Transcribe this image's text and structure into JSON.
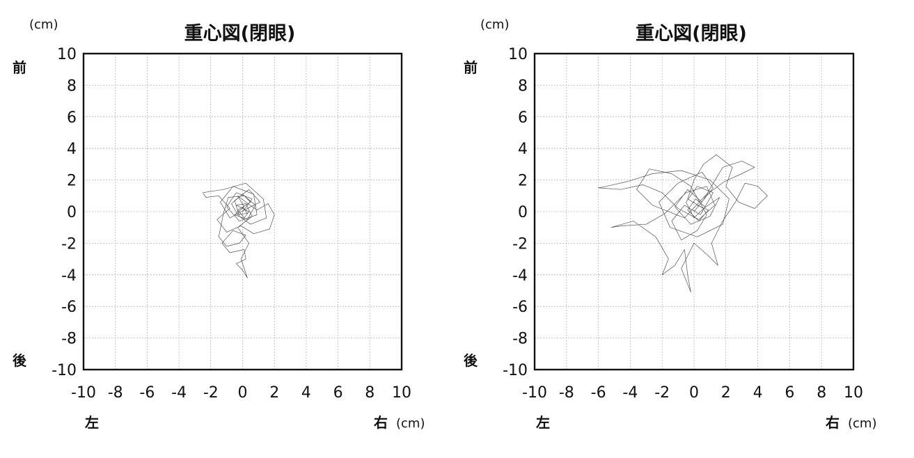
{
  "chart_data": [
    {
      "type": "line",
      "title": "重心図(閉眼)",
      "x_unit": "(cm)",
      "y_unit": "(cm)",
      "y_top_label": "前",
      "y_bottom_label": "後",
      "x_left_label": "左",
      "x_right_label": "右",
      "xlim": [
        -10,
        10
      ],
      "ylim": [
        -10,
        10
      ],
      "x_ticks": [
        "-10",
        "-8",
        "-6",
        "-4",
        "-2",
        "0",
        "2",
        "4",
        "6",
        "8",
        "10"
      ],
      "y_ticks": [
        "10",
        "8",
        "6",
        "4",
        "2",
        "0",
        "-2",
        "-4",
        "-6",
        "-8",
        "-10"
      ],
      "grid": true,
      "series": [
        {
          "stroke": "#333333",
          "points": [
            [
              0,
              0
            ],
            [
              0.6,
              0.8
            ],
            [
              -0.4,
              1.2
            ],
            [
              -1,
              0.3
            ],
            [
              -0.2,
              -0.6
            ],
            [
              0.9,
              -0.2
            ],
            [
              0.7,
              1.1
            ],
            [
              -0.6,
              1.6
            ],
            [
              -1.4,
              0.6
            ],
            [
              -0.8,
              -0.4
            ],
            [
              0.3,
              0.2
            ],
            [
              1.1,
              0.6
            ],
            [
              0.4,
              1.4
            ],
            [
              -0.5,
              0.7
            ],
            [
              -0.2,
              -0.3
            ],
            [
              0.5,
              -0.8
            ],
            [
              1.5,
              -0.4
            ],
            [
              1.3,
              0.8
            ],
            [
              0.2,
              1.8
            ],
            [
              -1.2,
              1.4
            ],
            [
              -2.5,
              1.2
            ],
            [
              -2.3,
              0.9
            ],
            [
              -1.5,
              1.0
            ],
            [
              -0.8,
              0.2
            ],
            [
              -1.6,
              -0.5
            ],
            [
              -1.0,
              -1.3
            ],
            [
              -0.1,
              -0.9
            ],
            [
              0.7,
              -1.4
            ],
            [
              1.7,
              -1.1
            ],
            [
              2.0,
              -0.2
            ],
            [
              1.6,
              0.5
            ],
            [
              0.9,
              0.1
            ],
            [
              0.2,
              0.6
            ],
            [
              -0.3,
              1.0
            ],
            [
              0.1,
              0.3
            ],
            [
              -0.5,
              -0.2
            ],
            [
              0.3,
              -0.5
            ],
            [
              0.8,
              0.4
            ],
            [
              0.1,
              1.0
            ],
            [
              -0.9,
              0.9
            ],
            [
              -1.2,
              -0.1
            ],
            [
              -1.5,
              -1.6
            ],
            [
              -1.0,
              -2.2
            ],
            [
              -0.2,
              -2.0
            ],
            [
              0.2,
              -1.5
            ],
            [
              -0.6,
              -1.2
            ],
            [
              -1.3,
              -2.0
            ],
            [
              -0.8,
              -2.6
            ],
            [
              0.1,
              -2.4
            ],
            [
              0.2,
              -3.0
            ],
            [
              -0.4,
              -3.3
            ],
            [
              0.0,
              -3.7
            ],
            [
              0.3,
              -4.2
            ],
            [
              -0.1,
              -3.0
            ],
            [
              0.4,
              -2.0
            ],
            [
              -0.3,
              -1.0
            ],
            [
              0.6,
              -0.3
            ],
            [
              0.2,
              0.5
            ],
            [
              -0.4,
              0.4
            ],
            [
              0.4,
              0.0
            ],
            [
              0.1,
              -0.4
            ],
            [
              -0.3,
              0.1
            ],
            [
              0.5,
              0.6
            ],
            [
              0.0,
              1.1
            ],
            [
              -0.7,
              0.5
            ],
            [
              -0.3,
              -0.2
            ],
            [
              0.3,
              -0.1
            ],
            [
              0.0,
              0.3
            ]
          ]
        }
      ]
    },
    {
      "type": "line",
      "title": "重心図(閉眼)",
      "x_unit": "(cm)",
      "y_unit": "(cm)",
      "y_top_label": "前",
      "y_bottom_label": "後",
      "x_left_label": "左",
      "x_right_label": "右",
      "xlim": [
        -10,
        10
      ],
      "ylim": [
        -10,
        10
      ],
      "x_ticks": [
        "-10",
        "-8",
        "-6",
        "-4",
        "-2",
        "0",
        "2",
        "4",
        "6",
        "8",
        "10"
      ],
      "y_ticks": [
        "10",
        "8",
        "6",
        "4",
        "2",
        "0",
        "-2",
        "-4",
        "-6",
        "-8",
        "-10"
      ],
      "grid": true,
      "series": [
        {
          "stroke": "#333333",
          "points": [
            [
              0,
              0
            ],
            [
              1.2,
              1.5
            ],
            [
              0.5,
              2.5
            ],
            [
              -1.0,
              1.8
            ],
            [
              -2.2,
              0.6
            ],
            [
              -1.5,
              -1.0
            ],
            [
              0.2,
              -1.6
            ],
            [
              1.8,
              -0.8
            ],
            [
              2.2,
              0.8
            ],
            [
              1.0,
              2.0
            ],
            [
              -0.8,
              2.6
            ],
            [
              -2.6,
              2.4
            ],
            [
              -4.2,
              1.9
            ],
            [
              -5.5,
              1.6
            ],
            [
              -6.0,
              1.5
            ],
            [
              -4.6,
              1.4
            ],
            [
              -3.2,
              1.7
            ],
            [
              -2.0,
              1.2
            ],
            [
              -1.0,
              0.2
            ],
            [
              0.3,
              -0.5
            ],
            [
              1.3,
              0.4
            ],
            [
              0.8,
              1.6
            ],
            [
              -0.5,
              1.2
            ],
            [
              -1.8,
              -0.1
            ],
            [
              -3.0,
              -0.8
            ],
            [
              -4.5,
              -0.9
            ],
            [
              -5.2,
              -1.0
            ],
            [
              -3.8,
              -0.6
            ],
            [
              -2.4,
              -1.6
            ],
            [
              -1.6,
              -3.0
            ],
            [
              -2.0,
              -4.0
            ],
            [
              -1.2,
              -3.4
            ],
            [
              -0.6,
              -2.4
            ],
            [
              -0.4,
              -4.0
            ],
            [
              -0.2,
              -5.1
            ],
            [
              -0.8,
              -3.6
            ],
            [
              0.0,
              -2.0
            ],
            [
              0.9,
              -2.8
            ],
            [
              1.5,
              -3.4
            ],
            [
              1.1,
              -2.0
            ],
            [
              1.8,
              -0.6
            ],
            [
              2.6,
              0.6
            ],
            [
              3.2,
              1.8
            ],
            [
              4.0,
              1.6
            ],
            [
              4.6,
              1.0
            ],
            [
              3.8,
              0.2
            ],
            [
              2.8,
              0.6
            ],
            [
              2.0,
              1.6
            ],
            [
              2.4,
              2.8
            ],
            [
              1.4,
              3.6
            ],
            [
              0.6,
              3.0
            ],
            [
              0.0,
              2.0
            ],
            [
              -0.4,
              0.8
            ],
            [
              0.6,
              0.2
            ],
            [
              1.6,
              0.9
            ],
            [
              1.0,
              -0.3
            ],
            [
              -0.2,
              -0.8
            ],
            [
              -1.2,
              0.3
            ],
            [
              -0.4,
              1.4
            ],
            [
              0.5,
              0.6
            ],
            [
              1.8,
              2.8
            ],
            [
              3.0,
              3.2
            ],
            [
              3.8,
              2.8
            ],
            [
              3.0,
              2.4
            ],
            [
              1.9,
              1.9
            ],
            [
              0.7,
              1.0
            ],
            [
              -0.6,
              -0.4
            ],
            [
              -2.6,
              0.4
            ],
            [
              -3.6,
              1.4
            ],
            [
              -2.8,
              2.7
            ],
            [
              -1.4,
              2.4
            ],
            [
              -0.2,
              1.6
            ],
            [
              0.8,
              -0.2
            ],
            [
              0.2,
              -1.2
            ],
            [
              -0.8,
              -1.8
            ],
            [
              -1.4,
              -0.6
            ],
            [
              -0.6,
              0.4
            ],
            [
              0.4,
              -0.2
            ],
            [
              1.2,
              1.2
            ],
            [
              0.2,
              1.6
            ],
            [
              -0.5,
              0.6
            ],
            [
              0.0,
              -0.4
            ],
            [
              0.7,
              0.3
            ],
            [
              0.1,
              0.8
            ],
            [
              -0.4,
              0.1
            ],
            [
              0.3,
              -0.6
            ],
            [
              0.9,
              0.1
            ],
            [
              0.2,
              0.4
            ]
          ]
        }
      ]
    }
  ]
}
